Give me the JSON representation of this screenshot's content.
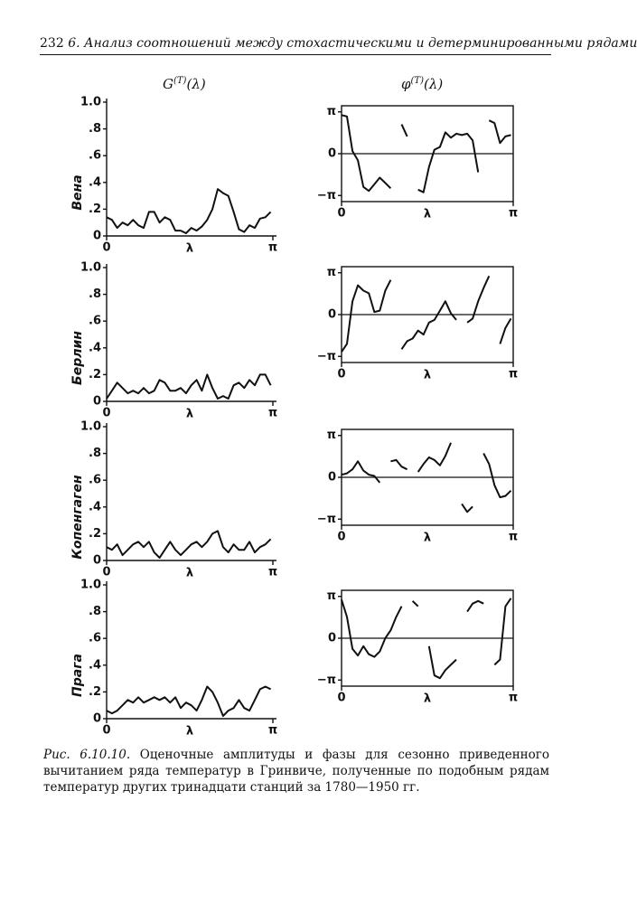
{
  "header": {
    "page_number": "232",
    "running_title": "6. Анализ соотношений между стохастическими и детерминированными рядами"
  },
  "column_titles": [
    {
      "base": "G",
      "sup": "(T)",
      "arg": "(λ)"
    },
    {
      "base": "φ",
      "sup": "(T)",
      "arg": "(λ)"
    }
  ],
  "chart_data": [
    {
      "type": "line",
      "ylabel": "Вена",
      "xlabel": "λ",
      "color": "#111",
      "x": [
        0,
        0.1,
        0.2,
        0.3,
        0.4,
        0.5,
        0.6,
        0.7,
        0.8,
        0.9,
        1.0,
        1.1,
        1.2,
        1.3,
        1.4,
        1.5,
        1.6,
        1.7,
        1.8,
        1.9,
        2.0,
        2.1,
        2.2,
        2.3,
        2.4,
        2.5,
        2.6,
        2.7,
        2.8,
        2.9,
        3.0,
        3.1
      ],
      "values": [
        0.14,
        0.12,
        0.06,
        0.1,
        0.08,
        0.12,
        0.08,
        0.06,
        0.18,
        0.18,
        0.1,
        0.14,
        0.12,
        0.04,
        0.04,
        0.02,
        0.06,
        0.04,
        0.07,
        0.12,
        0.2,
        0.35,
        0.32,
        0.3,
        0.18,
        0.05,
        0.03,
        0.08,
        0.06,
        0.13,
        0.14,
        0.18
      ],
      "xlim": [
        0,
        3.1416
      ],
      "xticks": [
        0,
        {
          "value": 3.1416,
          "label": "π"
        }
      ],
      "ylim": [
        0,
        1
      ],
      "yticks": [
        0,
        {
          "value": 0.2,
          "label": ".2"
        },
        {
          "value": 0.4,
          "label": ".4"
        },
        {
          "value": 0.6,
          "label": ".6"
        },
        {
          "value": 0.8,
          "label": ".8"
        },
        {
          "value": 1.0,
          "label": "1.0"
        }
      ]
    },
    {
      "type": "phase",
      "xlabel": "λ",
      "color": "#111",
      "zero_line": true,
      "x": [
        0,
        0.1,
        0.2,
        0.3,
        0.4,
        0.5,
        0.6,
        0.7,
        0.8,
        0.9,
        1.0,
        1.1,
        1.2,
        1.3,
        1.4,
        1.5,
        1.6,
        1.7,
        1.8,
        1.9,
        2.0,
        2.1,
        2.2,
        2.3,
        2.4,
        2.5,
        2.6,
        2.7,
        2.8,
        2.9,
        3.0,
        3.1
      ],
      "values": [
        2.9,
        2.8,
        0.2,
        -0.5,
        -2.5,
        -2.8,
        -2.3,
        -1.8,
        -2.2,
        -2.6,
        null,
        2.2,
        1.3,
        null,
        -2.7,
        -2.9,
        -1,
        0.3,
        0.5,
        1.6,
        1.2,
        1.5,
        1.4,
        1.5,
        1.0,
        -1.4,
        null,
        2.5,
        2.3,
        0.8,
        1.3,
        1.4
      ],
      "xlim": [
        0,
        3.1416
      ],
      "xticks": [
        0,
        {
          "value": 3.1416,
          "label": "π"
        }
      ],
      "ylim": [
        -3.6,
        3.6
      ],
      "yticks": [
        {
          "value": -3.1416,
          "label": "−π"
        },
        0,
        {
          "value": 3.1416,
          "label": "π"
        }
      ]
    },
    {
      "type": "line",
      "ylabel": "Берлин",
      "xlabel": "λ",
      "color": "#111",
      "x": [
        0,
        0.1,
        0.2,
        0.3,
        0.4,
        0.5,
        0.6,
        0.7,
        0.8,
        0.9,
        1.0,
        1.1,
        1.2,
        1.3,
        1.4,
        1.5,
        1.6,
        1.7,
        1.8,
        1.9,
        2.0,
        2.1,
        2.2,
        2.3,
        2.4,
        2.5,
        2.6,
        2.7,
        2.8,
        2.9,
        3.0,
        3.1
      ],
      "values": [
        0.02,
        0.08,
        0.14,
        0.1,
        0.06,
        0.08,
        0.06,
        0.1,
        0.06,
        0.08,
        0.16,
        0.14,
        0.08,
        0.08,
        0.1,
        0.06,
        0.12,
        0.16,
        0.08,
        0.2,
        0.1,
        0.02,
        0.04,
        0.02,
        0.12,
        0.14,
        0.1,
        0.16,
        0.12,
        0.2,
        0.2,
        0.12
      ],
      "xlim": [
        0,
        3.1416
      ],
      "xticks": [
        0,
        {
          "value": 3.1416,
          "label": "π"
        }
      ],
      "ylim": [
        0,
        1
      ],
      "yticks": [
        0,
        {
          "value": 0.2,
          "label": ".2"
        },
        {
          "value": 0.4,
          "label": ".4"
        },
        {
          "value": 0.6,
          "label": ".6"
        },
        {
          "value": 0.8,
          "label": ".8"
        },
        {
          "value": 1.0,
          "label": "1.0"
        }
      ]
    },
    {
      "type": "phase",
      "xlabel": "λ",
      "color": "#111",
      "zero_line": true,
      "x": [
        0,
        0.1,
        0.2,
        0.3,
        0.4,
        0.5,
        0.6,
        0.7,
        0.8,
        0.9,
        1.0,
        1.1,
        1.2,
        1.3,
        1.4,
        1.5,
        1.6,
        1.7,
        1.8,
        1.9,
        2.0,
        2.1,
        2.2,
        2.3,
        2.4,
        2.5,
        2.6,
        2.7,
        2.8,
        2.9,
        3.0,
        3.1
      ],
      "values": [
        -2.8,
        -2.2,
        1.0,
        2.2,
        1.8,
        1.6,
        0.2,
        0.3,
        1.8,
        2.6,
        null,
        -2.6,
        -2.0,
        -1.8,
        -1.2,
        -1.5,
        -0.6,
        -0.4,
        0.3,
        1.0,
        0.1,
        -0.4,
        null,
        -0.6,
        -0.3,
        1.0,
        2.0,
        2.9,
        null,
        -2.2,
        -1.0,
        -0.3
      ],
      "xlim": [
        0,
        3.1416
      ],
      "xticks": [
        0,
        {
          "value": 3.1416,
          "label": "π"
        }
      ],
      "ylim": [
        -3.6,
        3.6
      ],
      "yticks": [
        {
          "value": -3.1416,
          "label": "−π"
        },
        0,
        {
          "value": 3.1416,
          "label": "π"
        }
      ]
    },
    {
      "type": "line",
      "ylabel": "Копенгаген",
      "xlabel": "λ",
      "color": "#111",
      "x": [
        0,
        0.1,
        0.2,
        0.3,
        0.4,
        0.5,
        0.6,
        0.7,
        0.8,
        0.9,
        1.0,
        1.1,
        1.2,
        1.3,
        1.4,
        1.5,
        1.6,
        1.7,
        1.8,
        1.9,
        2.0,
        2.1,
        2.2,
        2.3,
        2.4,
        2.5,
        2.6,
        2.7,
        2.8,
        2.9,
        3.0,
        3.1
      ],
      "values": [
        0.1,
        0.08,
        0.12,
        0.04,
        0.08,
        0.12,
        0.14,
        0.1,
        0.14,
        0.06,
        0.02,
        0.08,
        0.14,
        0.08,
        0.04,
        0.08,
        0.12,
        0.14,
        0.1,
        0.14,
        0.2,
        0.22,
        0.1,
        0.06,
        0.12,
        0.08,
        0.08,
        0.14,
        0.06,
        0.1,
        0.12,
        0.16
      ],
      "xlim": [
        0,
        3.1416
      ],
      "xticks": [
        0,
        {
          "value": 3.1416,
          "label": "π"
        }
      ],
      "ylim": [
        0,
        1
      ],
      "yticks": [
        0,
        {
          "value": 0.2,
          "label": ".2"
        },
        {
          "value": 0.4,
          "label": ".4"
        },
        {
          "value": 0.6,
          "label": ".6"
        },
        {
          "value": 0.8,
          "label": ".8"
        },
        {
          "value": 1.0,
          "label": "1.0"
        }
      ]
    },
    {
      "type": "phase",
      "xlabel": "λ",
      "color": "#111",
      "zero_line": true,
      "x": [
        0,
        0.1,
        0.2,
        0.3,
        0.4,
        0.5,
        0.6,
        0.7,
        0.8,
        0.9,
        1.0,
        1.1,
        1.2,
        1.3,
        1.4,
        1.5,
        1.6,
        1.7,
        1.8,
        1.9,
        2.0,
        2.1,
        2.2,
        2.3,
        2.4,
        2.5,
        2.6,
        2.7,
        2.8,
        2.9,
        3.0,
        3.1
      ],
      "values": [
        0.2,
        0.3,
        0.6,
        1.2,
        0.5,
        0.2,
        0.1,
        -0.4,
        null,
        1.2,
        1.3,
        0.8,
        0.6,
        null,
        0.4,
        1.0,
        1.5,
        1.3,
        0.9,
        1.6,
        2.6,
        null,
        -2.0,
        -2.6,
        -2.2,
        null,
        1.8,
        1.0,
        -0.6,
        -1.5,
        -1.4,
        -1.0
      ],
      "xlim": [
        0,
        3.1416
      ],
      "xticks": [
        0,
        {
          "value": 3.1416,
          "label": "π"
        }
      ],
      "ylim": [
        -3.6,
        3.6
      ],
      "yticks": [
        {
          "value": -3.1416,
          "label": "−π"
        },
        0,
        {
          "value": 3.1416,
          "label": "π"
        }
      ]
    },
    {
      "type": "line",
      "ylabel": "Прага",
      "xlabel": "λ",
      "color": "#111",
      "x": [
        0,
        0.1,
        0.2,
        0.3,
        0.4,
        0.5,
        0.6,
        0.7,
        0.8,
        0.9,
        1.0,
        1.1,
        1.2,
        1.3,
        1.4,
        1.5,
        1.6,
        1.7,
        1.8,
        1.9,
        2.0,
        2.1,
        2.2,
        2.3,
        2.4,
        2.5,
        2.6,
        2.7,
        2.8,
        2.9,
        3.0,
        3.1
      ],
      "values": [
        0.06,
        0.04,
        0.06,
        0.1,
        0.14,
        0.12,
        0.16,
        0.12,
        0.14,
        0.16,
        0.14,
        0.16,
        0.12,
        0.16,
        0.08,
        0.12,
        0.1,
        0.06,
        0.14,
        0.24,
        0.2,
        0.12,
        0.02,
        0.06,
        0.08,
        0.14,
        0.08,
        0.06,
        0.14,
        0.22,
        0.24,
        0.22
      ],
      "xlim": [
        0,
        3.1416
      ],
      "xticks": [
        0,
        {
          "value": 3.1416,
          "label": "π"
        }
      ],
      "ylim": [
        0,
        1
      ],
      "yticks": [
        0,
        {
          "value": 0.2,
          "label": ".2"
        },
        {
          "value": 0.4,
          "label": ".4"
        },
        {
          "value": 0.6,
          "label": ".6"
        },
        {
          "value": 0.8,
          "label": ".8"
        },
        {
          "value": 1.0,
          "label": "1.0"
        }
      ]
    },
    {
      "type": "phase",
      "xlabel": "λ",
      "color": "#111",
      "zero_line": true,
      "x": [
        0,
        0.1,
        0.2,
        0.3,
        0.4,
        0.5,
        0.6,
        0.7,
        0.8,
        0.9,
        1.0,
        1.1,
        1.2,
        1.3,
        1.4,
        1.5,
        1.6,
        1.7,
        1.8,
        1.9,
        2.0,
        2.1,
        2.2,
        2.3,
        2.4,
        2.5,
        2.6,
        2.7,
        2.8,
        2.9,
        3.0,
        3.1
      ],
      "values": [
        2.9,
        1.6,
        -0.8,
        -1.3,
        -0.6,
        -1.2,
        -1.4,
        -1.0,
        0.0,
        0.6,
        1.6,
        2.4,
        null,
        2.8,
        2.4,
        null,
        -0.6,
        -2.8,
        -3.0,
        -2.4,
        -2.0,
        -1.6,
        null,
        2.0,
        2.6,
        2.8,
        2.6,
        null,
        -2.0,
        -1.6,
        2.4,
        3.0
      ],
      "xlim": [
        0,
        3.1416
      ],
      "xticks": [
        0,
        {
          "value": 3.1416,
          "label": "π"
        }
      ],
      "ylim": [
        -3.6,
        3.6
      ],
      "yticks": [
        {
          "value": -3.1416,
          "label": "−π"
        },
        0,
        {
          "value": 3.1416,
          "label": "π"
        }
      ]
    }
  ],
  "caption": {
    "label": "Рис. 6.10.10.",
    "text": "Оценочные амплитуды и фазы для сезонно приведенного вычитанием ряда температур в Гринвиче, полученные по подобным рядам температур других тринадцати станций за 1780—1950 гг."
  }
}
